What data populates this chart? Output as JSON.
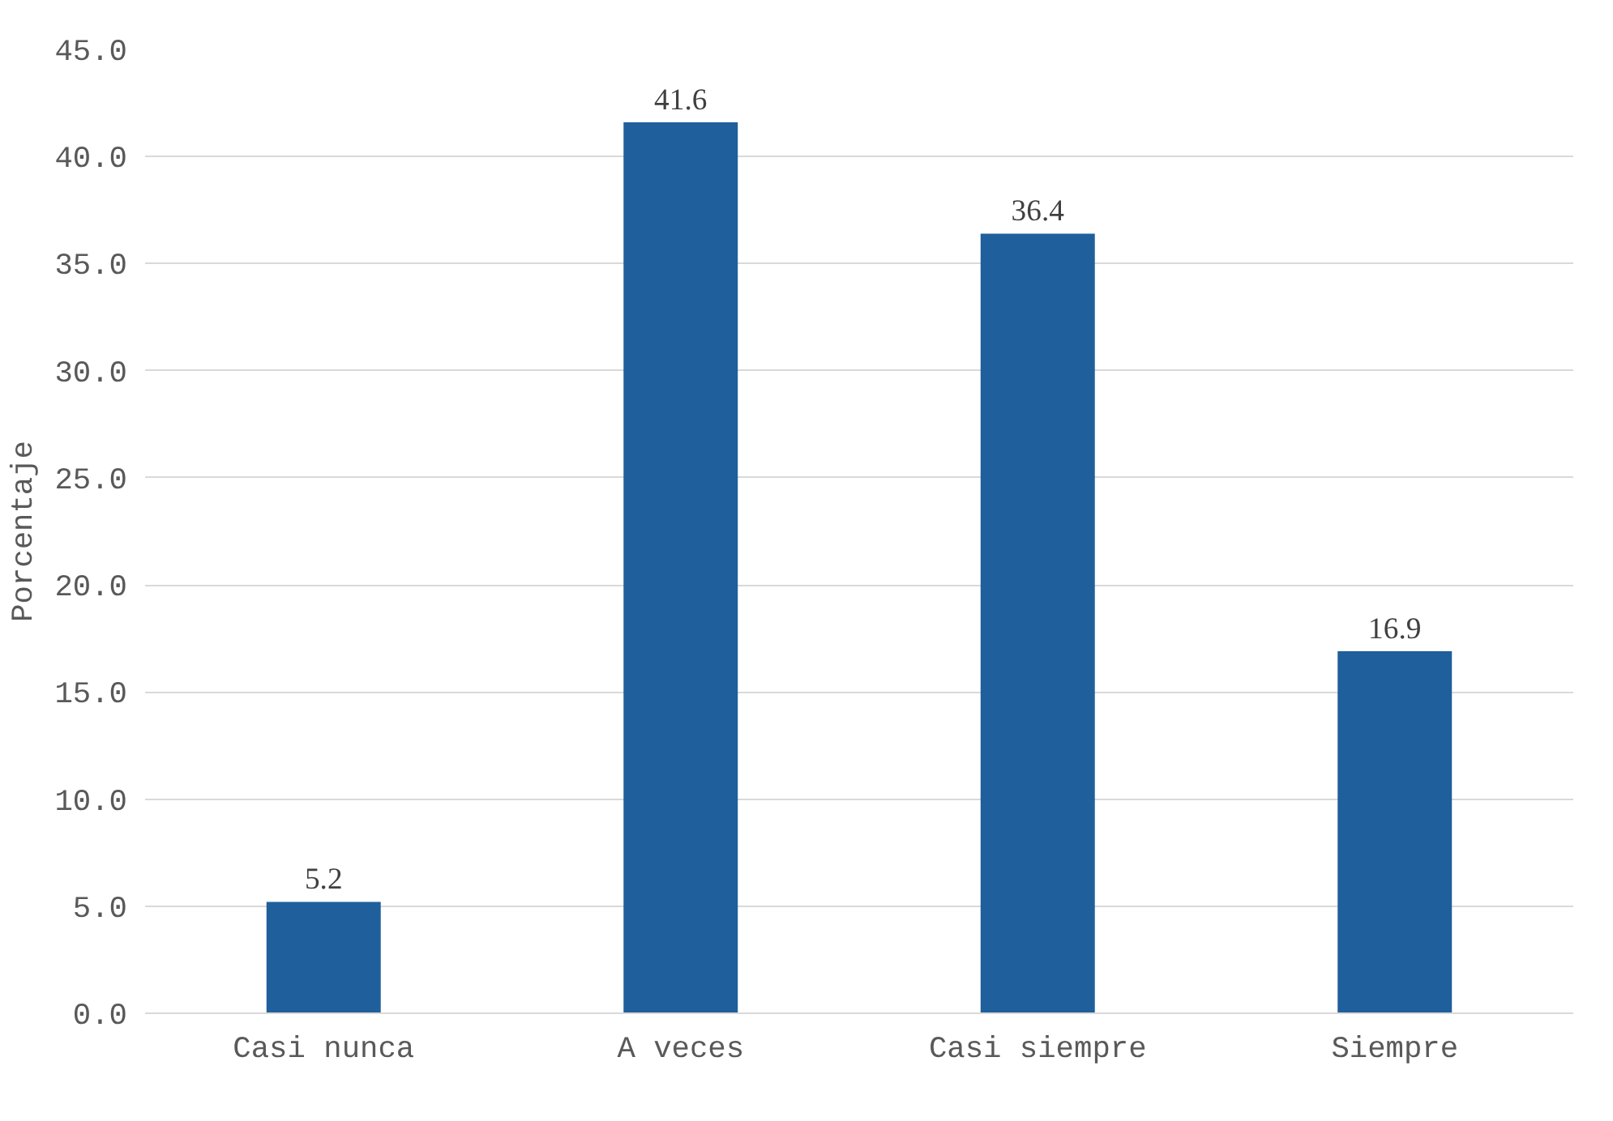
{
  "chart_data": {
    "type": "bar",
    "ylabel": "Porcentaje",
    "categories": [
      "Casi nunca",
      "A veces",
      "Casi siempre",
      "Siempre"
    ],
    "values": [
      5.2,
      41.6,
      36.4,
      16.9
    ],
    "color": "#1f5f9b",
    "ylim": [
      0,
      45
    ],
    "yticks": [
      {
        "value": 0,
        "label": "0.0"
      },
      {
        "value": 5,
        "label": "5.0"
      },
      {
        "value": 10,
        "label": "10.0"
      },
      {
        "value": 15,
        "label": "15.0"
      },
      {
        "value": 20,
        "label": "20.0"
      },
      {
        "value": 25,
        "label": "25.0"
      },
      {
        "value": 30,
        "label": "30.0"
      },
      {
        "value": 35,
        "label": "35.0"
      },
      {
        "value": 40,
        "label": "40.0"
      },
      {
        "value": 45,
        "label": "45.0"
      }
    ],
    "grid": "y",
    "data_labels": true
  }
}
